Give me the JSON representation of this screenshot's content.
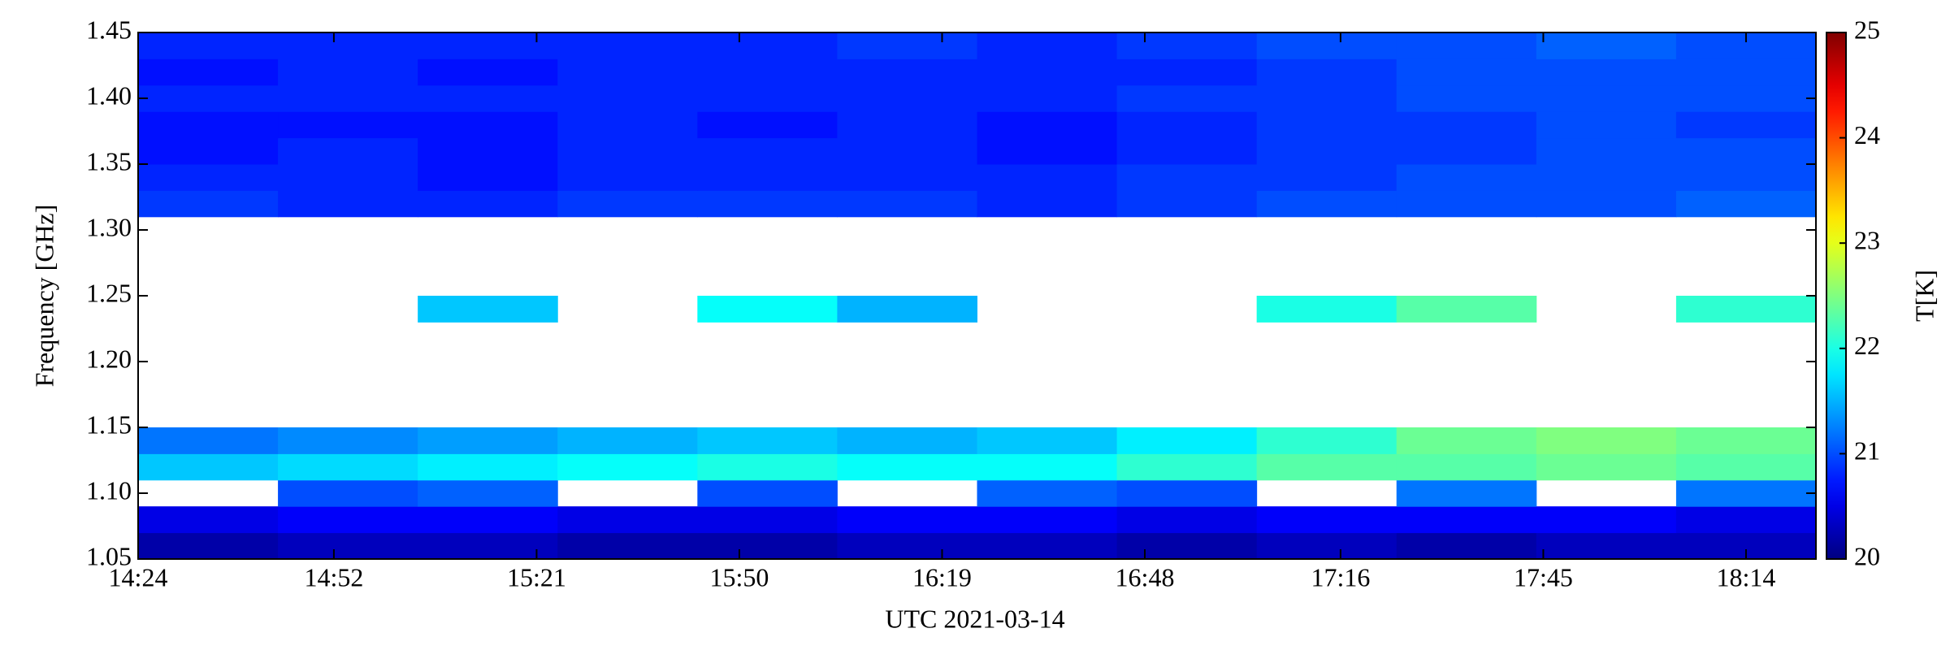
{
  "chart_data": {
    "type": "heatmap",
    "xlabel": "UTC 2021-03-14",
    "ylabel": "Frequency [GHz]",
    "colorbar_label": "T[K]",
    "colormap": "jet",
    "clim": [
      20,
      25
    ],
    "cticks": [
      20,
      21,
      22,
      23,
      24,
      25
    ],
    "xlim": [
      864,
      1104
    ],
    "xticks": [
      {
        "value": 864,
        "label": "14:24"
      },
      {
        "value": 892,
        "label": "14:52"
      },
      {
        "value": 921,
        "label": "15:21"
      },
      {
        "value": 950,
        "label": "15:50"
      },
      {
        "value": 979,
        "label": "16:19"
      },
      {
        "value": 1008,
        "label": "16:48"
      },
      {
        "value": 1036,
        "label": "17:16"
      },
      {
        "value": 1065,
        "label": "17:45"
      },
      {
        "value": 1094,
        "label": "18:14"
      }
    ],
    "ylim": [
      1.05,
      1.45
    ],
    "yticks": [
      1.05,
      {
        "value": 1.1,
        "label": "1.10"
      },
      1.15,
      {
        "value": 1.2,
        "label": "1.20"
      },
      1.25,
      {
        "value": 1.3,
        "label": "1.30"
      },
      1.35,
      {
        "value": 1.4,
        "label": "1.40"
      },
      1.45
    ],
    "xbins": [
      864,
      884,
      904,
      924,
      944,
      964,
      984,
      1004,
      1024,
      1044,
      1064,
      1084,
      1104
    ],
    "ybins": [
      1.05,
      1.07,
      1.09,
      1.11,
      1.13,
      1.15,
      1.17,
      1.19,
      1.21,
      1.23,
      1.25,
      1.27,
      1.29,
      1.31,
      1.33,
      1.35,
      1.37,
      1.39,
      1.41,
      1.43,
      1.45
    ],
    "values": [
      [
        20.2,
        20.3,
        20.3,
        20.2,
        20.2,
        20.3,
        20.3,
        20.2,
        20.3,
        20.2,
        20.3,
        20.3
      ],
      [
        20.5,
        20.6,
        20.6,
        20.5,
        20.5,
        20.6,
        20.6,
        20.5,
        20.6,
        20.6,
        20.6,
        20.5
      ],
      [
        null,
        21.0,
        21.1,
        null,
        21.0,
        null,
        21.1,
        21.0,
        null,
        21.2,
        null,
        21.2
      ],
      [
        21.6,
        21.7,
        21.8,
        21.9,
        22.0,
        21.9,
        21.9,
        22.1,
        22.3,
        22.3,
        22.4,
        22.3
      ],
      [
        21.2,
        21.3,
        21.4,
        21.5,
        21.6,
        21.5,
        21.6,
        21.8,
        22.1,
        22.4,
        22.5,
        22.4
      ],
      [
        null,
        null,
        null,
        null,
        null,
        null,
        null,
        null,
        null,
        null,
        null,
        null
      ],
      [
        null,
        null,
        null,
        null,
        null,
        null,
        null,
        null,
        null,
        null,
        null,
        null
      ],
      [
        null,
        null,
        null,
        null,
        null,
        null,
        null,
        null,
        null,
        null,
        null,
        null
      ],
      [
        null,
        null,
        null,
        null,
        null,
        null,
        null,
        null,
        null,
        null,
        null,
        null
      ],
      [
        null,
        null,
        21.6,
        null,
        21.9,
        21.5,
        null,
        null,
        22.0,
        22.3,
        null,
        22.1
      ],
      [
        null,
        null,
        null,
        null,
        null,
        null,
        null,
        null,
        null,
        null,
        null,
        null
      ],
      [
        null,
        null,
        null,
        null,
        null,
        null,
        null,
        null,
        null,
        null,
        null,
        null
      ],
      [
        null,
        null,
        null,
        null,
        null,
        null,
        null,
        null,
        null,
        null,
        null,
        null
      ],
      [
        20.9,
        20.8,
        20.8,
        20.9,
        20.9,
        20.9,
        20.8,
        20.9,
        21.0,
        21.0,
        21.0,
        21.1
      ],
      [
        20.8,
        20.8,
        20.7,
        20.8,
        20.8,
        20.8,
        20.8,
        20.9,
        20.9,
        21.0,
        21.0,
        21.0
      ],
      [
        20.7,
        20.8,
        20.7,
        20.8,
        20.8,
        20.8,
        20.7,
        20.8,
        20.9,
        20.9,
        21.0,
        21.0
      ],
      [
        20.7,
        20.7,
        20.7,
        20.8,
        20.7,
        20.8,
        20.7,
        20.8,
        20.9,
        20.9,
        21.0,
        20.9
      ],
      [
        20.8,
        20.8,
        20.8,
        20.8,
        20.8,
        20.8,
        20.8,
        20.9,
        20.9,
        21.0,
        21.0,
        21.0
      ],
      [
        20.7,
        20.8,
        20.7,
        20.8,
        20.8,
        20.8,
        20.8,
        20.8,
        20.9,
        21.0,
        21.0,
        21.0
      ],
      [
        20.8,
        20.8,
        20.8,
        20.8,
        20.8,
        20.9,
        20.8,
        20.9,
        21.0,
        21.0,
        21.1,
        21.0
      ]
    ]
  }
}
